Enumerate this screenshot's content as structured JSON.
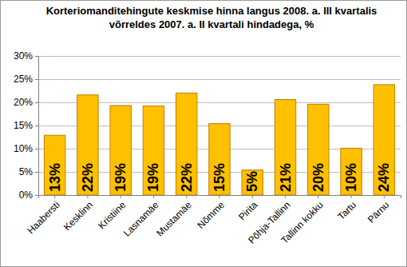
{
  "chart_data": {
    "type": "bar",
    "title": "Korteriomanditehingute keskmise hinna langus 2008. a. III kvartalis võrreldes 2007. a. II kvartali hindadega, %",
    "categories": [
      "Haabersti",
      "Kesklinn",
      "Kristiine",
      "Lasnamäe",
      "Mustamäe",
      "Nõmme",
      "Pirita",
      "Põhja-Tallinn",
      "Tallinn kokku",
      "Tartu",
      "Pärnu"
    ],
    "values": [
      12.9,
      21.6,
      19.3,
      19.2,
      22.0,
      15.4,
      5.4,
      20.6,
      19.6,
      10.1,
      23.8
    ],
    "value_labels": [
      "13%",
      "22%",
      "19%",
      "19%",
      "22%",
      "15%",
      "5%",
      "21%",
      "20%",
      "10%",
      "24%"
    ],
    "data_labels": true,
    "color": "#ffc000",
    "ylim": [
      0,
      30
    ],
    "yticks": [
      {
        "value": 0,
        "label": "0%"
      },
      {
        "value": 5,
        "label": "5%"
      },
      {
        "value": 10,
        "label": "10%"
      },
      {
        "value": 15,
        "label": "15%"
      },
      {
        "value": 20,
        "label": "20%"
      },
      {
        "value": 25,
        "label": "25%"
      },
      {
        "value": 30,
        "label": "30%"
      }
    ],
    "grid": true
  }
}
